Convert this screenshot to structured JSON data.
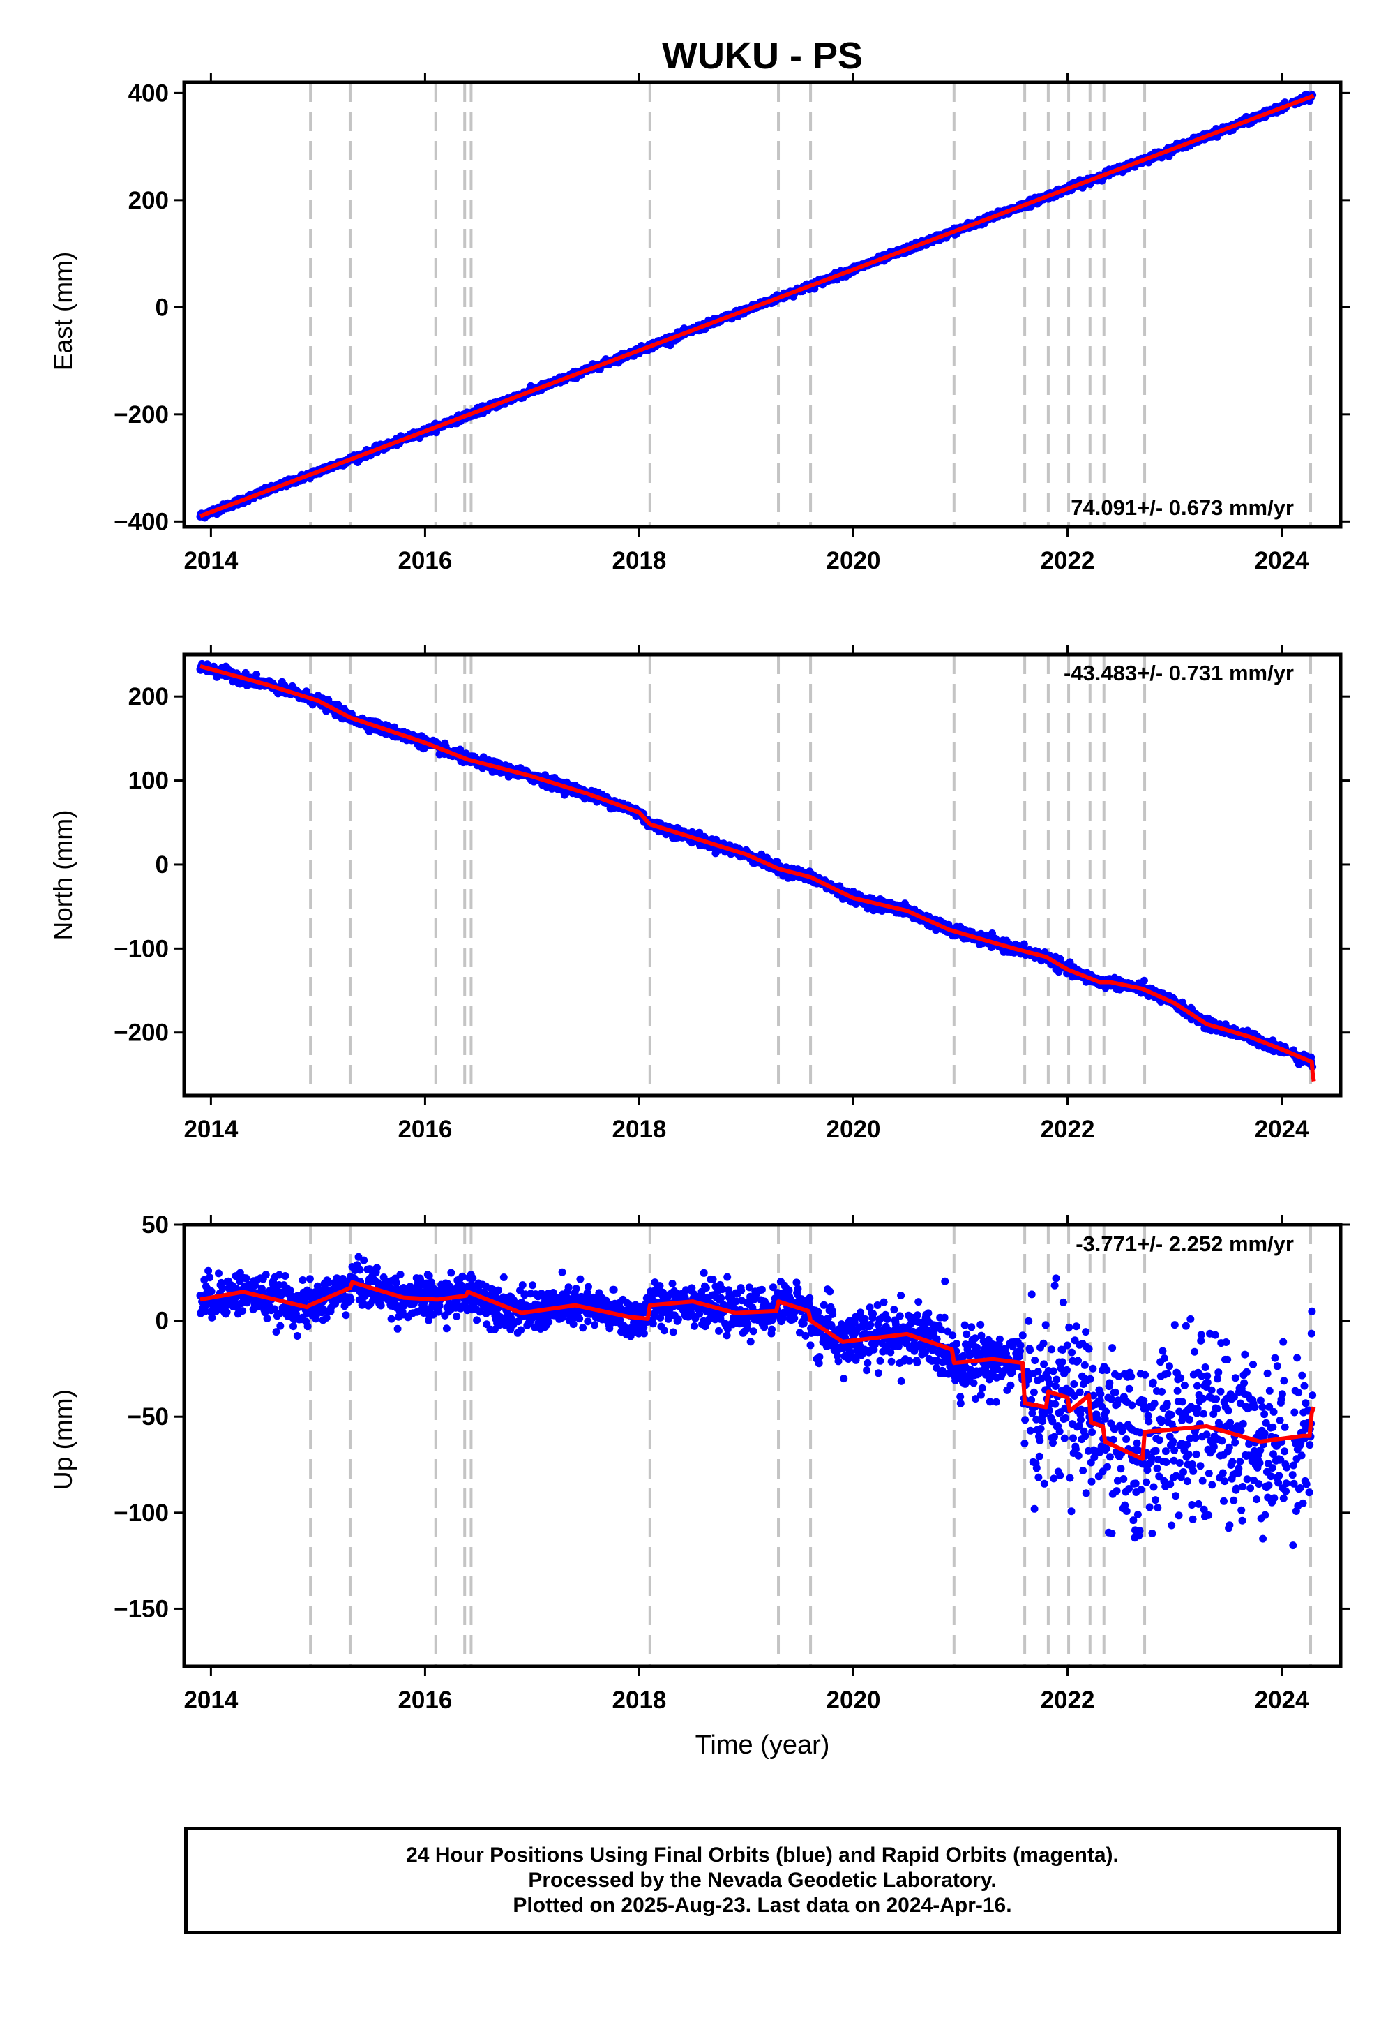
{
  "title": "WUKU - PS",
  "colors": {
    "data": "#0000ff",
    "model": "#ff0000",
    "events": "#c4c4c4",
    "frame": "#000000"
  },
  "chart_data": [
    {
      "type": "scatter",
      "component": "east",
      "ylabel": "East (mm)",
      "rate_text": "74.091+/- 0.673 mm/yr",
      "xlim": [
        2013.75,
        2024.55
      ],
      "ylim": [
        -410,
        420
      ],
      "xticks": [
        2014,
        2016,
        2018,
        2020,
        2022,
        2024
      ],
      "yticks": [
        -400,
        -200,
        0,
        200,
        400
      ],
      "model": {
        "x": [
          2013.9,
          2024.3
        ],
        "y": [
          -390,
          395
        ]
      },
      "data_range": {
        "start": 2013.9,
        "end": 2024.29
      }
    },
    {
      "type": "scatter",
      "component": "north",
      "ylabel": "North (mm)",
      "rate_text": "-43.483+/- 0.731 mm/yr",
      "xlim": [
        2013.75,
        2024.55
      ],
      "ylim": [
        -275,
        250
      ],
      "xticks": [
        2014,
        2016,
        2018,
        2020,
        2022,
        2024
      ],
      "yticks": [
        -200,
        -100,
        0,
        100,
        200
      ],
      "model": {
        "x": [
          2013.9,
          2014.5,
          2015.0,
          2015.3,
          2016.0,
          2016.4,
          2017.0,
          2017.5,
          2018.0,
          2018.1,
          2018.5,
          2019.0,
          2019.3,
          2019.6,
          2020.0,
          2020.5,
          2020.9,
          2021.5,
          2021.8,
          2022.0,
          2022.3,
          2022.4,
          2022.7,
          2023.0,
          2023.3,
          2023.7,
          2024.0,
          2024.28,
          2024.29,
          2024.3
        ],
        "y": [
          236,
          215,
          195,
          175,
          145,
          125,
          105,
          85,
          62,
          48,
          32,
          12,
          -5,
          -15,
          -40,
          -55,
          -78,
          -100,
          -110,
          -125,
          -140,
          -140,
          -148,
          -165,
          -190,
          -205,
          -220,
          -235,
          -250,
          -258
        ]
      },
      "data_range": {
        "start": 2013.9,
        "end": 2024.29
      }
    },
    {
      "type": "scatter",
      "component": "up",
      "ylabel": "Up (mm)",
      "xlabel": "Time (year)",
      "rate_text": "-3.771+/- 2.252 mm/yr",
      "xlim": [
        2013.75,
        2024.55
      ],
      "ylim": [
        -180,
        50
      ],
      "xticks": [
        2014,
        2016,
        2018,
        2020,
        2022,
        2024
      ],
      "yticks": [
        -150,
        -100,
        -50,
        0,
        50
      ],
      "model": {
        "x": [
          2013.9,
          2014.3,
          2014.9,
          2014.92,
          2015.3,
          2015.32,
          2015.8,
          2016.1,
          2016.12,
          2016.38,
          2016.4,
          2016.9,
          2017.4,
          2017.9,
          2018.08,
          2018.1,
          2018.5,
          2018.9,
          2019.28,
          2019.3,
          2019.58,
          2019.6,
          2019.9,
          2020.5,
          2020.92,
          2020.94,
          2021.3,
          2021.58,
          2021.6,
          2021.8,
          2021.82,
          2022.0,
          2022.02,
          2022.2,
          2022.22,
          2022.33,
          2022.35,
          2022.7,
          2022.72,
          2023.3,
          2023.8,
          2024.2,
          2024.26,
          2024.28,
          2024.3
        ],
        "y": [
          11,
          15,
          7,
          8,
          17,
          20,
          12,
          11,
          11,
          13,
          15,
          4,
          8,
          2,
          1,
          8,
          10,
          4,
          5,
          10,
          5,
          0,
          -11,
          -7,
          -15,
          -22,
          -20,
          -22,
          -43,
          -45,
          -37,
          -40,
          -47,
          -39,
          -53,
          -55,
          -63,
          -72,
          -58,
          -55,
          -63,
          -60,
          -60,
          -48,
          -45
        ]
      },
      "data_range": {
        "start": 2013.9,
        "end": 2024.29
      }
    }
  ],
  "event_lines": [
    2014.93,
    2015.3,
    2016.1,
    2016.37,
    2016.43,
    2018.1,
    2019.3,
    2019.6,
    2020.94,
    2021.6,
    2021.82,
    2022.01,
    2022.21,
    2022.34,
    2022.72,
    2024.27
  ],
  "footer": {
    "line1": "24 Hour Positions Using Final Orbits (blue) and Rapid Orbits (magenta).",
    "line2": "Processed by the Nevada Geodetic Laboratory.",
    "line3": "Plotted on 2025-Aug-23. Last data on 2024-Apr-16."
  }
}
